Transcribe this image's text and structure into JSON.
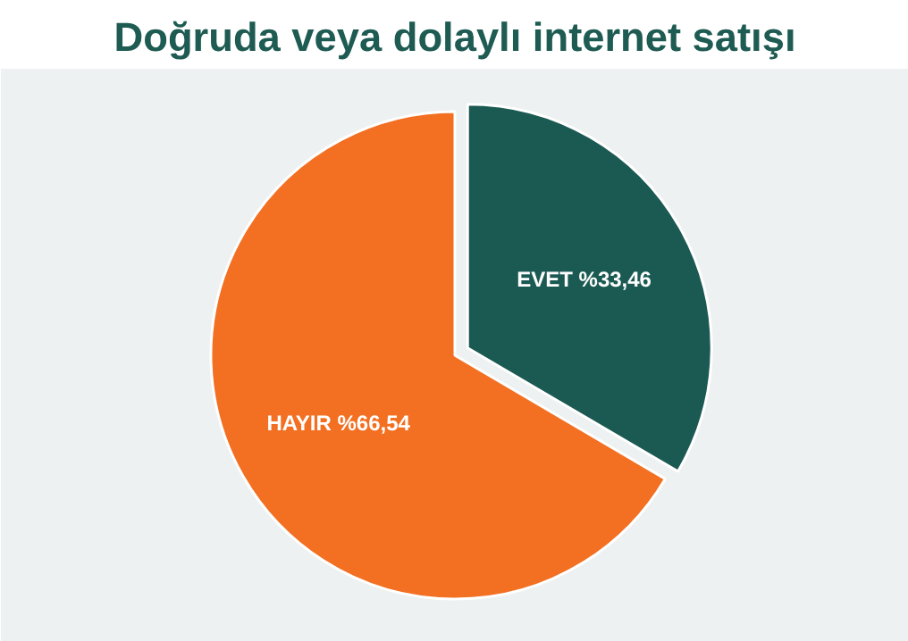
{
  "chart_data": {
    "type": "pie",
    "title": "Doğruda veya dolaylı internet satışı",
    "categories": [
      "EVET",
      "HAYIR"
    ],
    "values": [
      33.46,
      66.54
    ],
    "value_labels": [
      "%33,46",
      "%66,54"
    ],
    "colors": [
      "#1b5a52",
      "#f36f21"
    ]
  }
}
